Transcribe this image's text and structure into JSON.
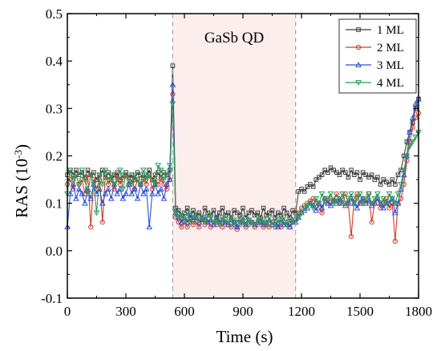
{
  "chart_data": {
    "type": "line",
    "title": "",
    "xlabel": "Time (s)",
    "ylabel_main": "RAS (10",
    "ylabel_sup": "-3",
    "ylabel_tail": ")",
    "xlim": [
      0,
      1800
    ],
    "ylim": [
      -0.1,
      0.5
    ],
    "xticks": [
      0,
      300,
      600,
      900,
      1200,
      1500,
      1800
    ],
    "xtick_labels": [
      "0",
      "300",
      "600",
      "900",
      "1200",
      "1500",
      "1800"
    ],
    "yticks": [
      -0.1,
      0.0,
      0.1,
      0.2,
      0.3,
      0.4,
      0.5
    ],
    "ytick_labels": [
      "-0.1",
      "0.0",
      "0.1",
      "0.2",
      "0.3",
      "0.4",
      "0.5"
    ],
    "grid": false,
    "legend_position": "top-right",
    "annotation": {
      "text": "GaSb QD",
      "region_x": [
        540,
        1170
      ]
    },
    "series": [
      {
        "name": "1 ML",
        "color": "#3a3a3a",
        "marker": "square",
        "x": [
          0,
          15,
          30,
          45,
          60,
          75,
          90,
          105,
          120,
          135,
          150,
          165,
          180,
          195,
          210,
          225,
          240,
          255,
          270,
          285,
          300,
          315,
          330,
          345,
          360,
          375,
          390,
          405,
          420,
          435,
          450,
          465,
          480,
          495,
          510,
          525,
          540,
          555,
          570,
          585,
          600,
          615,
          630,
          645,
          660,
          675,
          690,
          705,
          720,
          735,
          750,
          765,
          780,
          795,
          810,
          825,
          840,
          855,
          870,
          885,
          900,
          915,
          930,
          945,
          960,
          975,
          990,
          1005,
          1020,
          1035,
          1050,
          1065,
          1080,
          1095,
          1110,
          1125,
          1140,
          1155,
          1170,
          1185,
          1200,
          1215,
          1230,
          1245,
          1260,
          1275,
          1290,
          1305,
          1320,
          1335,
          1350,
          1365,
          1380,
          1395,
          1410,
          1425,
          1440,
          1455,
          1470,
          1485,
          1500,
          1515,
          1530,
          1545,
          1560,
          1575,
          1590,
          1605,
          1620,
          1635,
          1650,
          1665,
          1680,
          1695,
          1710,
          1725,
          1740,
          1755,
          1770,
          1785,
          1800
        ],
        "y": [
          0.16,
          0.17,
          0.16,
          0.17,
          0.16,
          0.165,
          0.155,
          0.17,
          0.16,
          0.165,
          0.15,
          0.16,
          0.17,
          0.155,
          0.165,
          0.15,
          0.16,
          0.165,
          0.15,
          0.16,
          0.165,
          0.155,
          0.16,
          0.15,
          0.165,
          0.16,
          0.155,
          0.16,
          0.17,
          0.15,
          0.16,
          0.165,
          0.155,
          0.165,
          0.16,
          0.17,
          0.39,
          0.09,
          0.085,
          0.075,
          0.08,
          0.09,
          0.07,
          0.085,
          0.075,
          0.08,
          0.07,
          0.09,
          0.08,
          0.075,
          0.085,
          0.07,
          0.08,
          0.09,
          0.075,
          0.08,
          0.07,
          0.085,
          0.08,
          0.075,
          0.09,
          0.07,
          0.08,
          0.085,
          0.075,
          0.08,
          0.07,
          0.09,
          0.075,
          0.08,
          0.085,
          0.07,
          0.08,
          0.075,
          0.09,
          0.08,
          0.07,
          0.085,
          0.08,
          0.125,
          0.13,
          0.125,
          0.135,
          0.14,
          0.135,
          0.15,
          0.155,
          0.16,
          0.17,
          0.165,
          0.175,
          0.17,
          0.165,
          0.16,
          0.17,
          0.165,
          0.155,
          0.17,
          0.16,
          0.165,
          0.15,
          0.165,
          0.16,
          0.155,
          0.16,
          0.15,
          0.155,
          0.14,
          0.15,
          0.145,
          0.14,
          0.15,
          0.14,
          0.16,
          0.17,
          0.2,
          0.23,
          0.25,
          0.27,
          0.3,
          0.32
        ]
      },
      {
        "name": "2 ML",
        "color": "#d0392b",
        "marker": "circle",
        "x": [
          0,
          15,
          30,
          45,
          60,
          75,
          90,
          105,
          120,
          135,
          150,
          165,
          180,
          195,
          210,
          225,
          240,
          255,
          270,
          285,
          300,
          315,
          330,
          345,
          360,
          375,
          390,
          405,
          420,
          435,
          450,
          465,
          480,
          495,
          510,
          525,
          540,
          555,
          570,
          585,
          600,
          615,
          630,
          645,
          660,
          675,
          690,
          705,
          720,
          735,
          750,
          765,
          780,
          795,
          810,
          825,
          840,
          855,
          870,
          885,
          900,
          915,
          930,
          945,
          960,
          975,
          990,
          1005,
          1020,
          1035,
          1050,
          1065,
          1080,
          1095,
          1110,
          1125,
          1140,
          1155,
          1170,
          1185,
          1200,
          1215,
          1230,
          1245,
          1260,
          1275,
          1290,
          1305,
          1320,
          1335,
          1350,
          1365,
          1380,
          1395,
          1410,
          1425,
          1440,
          1455,
          1470,
          1485,
          1500,
          1515,
          1530,
          1545,
          1560,
          1575,
          1590,
          1605,
          1620,
          1635,
          1650,
          1665,
          1680,
          1695,
          1710,
          1725,
          1740,
          1755,
          1770,
          1785,
          1800
        ],
        "y": [
          0.14,
          0.15,
          0.13,
          0.16,
          0.14,
          0.15,
          0.12,
          0.16,
          0.05,
          0.15,
          0.13,
          0.15,
          0.06,
          0.16,
          0.14,
          0.15,
          0.13,
          0.16,
          0.14,
          0.15,
          0.16,
          0.14,
          0.15,
          0.13,
          0.15,
          0.14,
          0.15,
          0.14,
          0.16,
          0.13,
          0.15,
          0.14,
          0.15,
          0.14,
          0.13,
          0.15,
          0.33,
          0.07,
          0.06,
          0.05,
          0.06,
          0.05,
          0.065,
          0.055,
          0.06,
          0.05,
          0.065,
          0.055,
          0.06,
          0.05,
          0.06,
          0.055,
          0.065,
          0.05,
          0.06,
          0.055,
          0.05,
          0.06,
          0.045,
          0.055,
          0.06,
          0.05,
          0.055,
          0.06,
          0.05,
          0.055,
          0.06,
          0.05,
          0.055,
          0.05,
          0.06,
          0.05,
          0.055,
          0.05,
          0.06,
          0.055,
          0.05,
          0.06,
          0.065,
          0.08,
          0.09,
          0.095,
          0.1,
          0.105,
          0.11,
          0.1,
          0.09,
          0.08,
          0.11,
          0.1,
          0.11,
          0.105,
          0.12,
          0.1,
          0.11,
          0.12,
          0.1,
          0.03,
          0.11,
          0.12,
          0.1,
          0.11,
          0.1,
          0.12,
          0.06,
          0.1,
          0.11,
          0.09,
          0.1,
          0.11,
          0.09,
          0.1,
          0.02,
          0.1,
          0.11,
          0.14,
          0.19,
          0.23,
          0.26,
          0.28,
          0.29
        ]
      },
      {
        "name": "3 ML",
        "color": "#2e4fd6",
        "marker": "triangle-up",
        "x": [
          0,
          15,
          30,
          45,
          60,
          75,
          90,
          105,
          120,
          135,
          150,
          165,
          180,
          195,
          210,
          225,
          240,
          255,
          270,
          285,
          300,
          315,
          330,
          345,
          360,
          375,
          390,
          405,
          420,
          435,
          450,
          465,
          480,
          495,
          510,
          525,
          540,
          555,
          570,
          585,
          600,
          615,
          630,
          645,
          660,
          675,
          690,
          705,
          720,
          735,
          750,
          765,
          780,
          795,
          810,
          825,
          840,
          855,
          870,
          885,
          900,
          915,
          930,
          945,
          960,
          975,
          990,
          1005,
          1020,
          1035,
          1050,
          1065,
          1080,
          1095,
          1110,
          1125,
          1140,
          1155,
          1170,
          1185,
          1200,
          1215,
          1230,
          1245,
          1260,
          1275,
          1290,
          1305,
          1320,
          1335,
          1350,
          1365,
          1380,
          1395,
          1410,
          1425,
          1440,
          1455,
          1470,
          1485,
          1500,
          1515,
          1530,
          1545,
          1560,
          1575,
          1590,
          1605,
          1620,
          1635,
          1650,
          1665,
          1680,
          1695,
          1710,
          1725,
          1740,
          1755,
          1770,
          1785,
          1800
        ],
        "y": [
          0.05,
          0.12,
          0.14,
          0.11,
          0.13,
          0.12,
          0.1,
          0.13,
          0.11,
          0.14,
          0.12,
          0.13,
          0.1,
          0.12,
          0.13,
          0.11,
          0.14,
          0.12,
          0.13,
          0.11,
          0.12,
          0.14,
          0.12,
          0.13,
          0.11,
          0.14,
          0.12,
          0.13,
          0.05,
          0.12,
          0.14,
          0.12,
          0.13,
          0.11,
          0.14,
          0.15,
          0.35,
          0.08,
          0.07,
          0.06,
          0.07,
          0.06,
          0.075,
          0.065,
          0.07,
          0.06,
          0.065,
          0.07,
          0.06,
          0.065,
          0.055,
          0.07,
          0.06,
          0.065,
          0.06,
          0.055,
          0.065,
          0.06,
          0.05,
          0.065,
          0.06,
          0.055,
          0.065,
          0.06,
          0.055,
          0.06,
          0.065,
          0.055,
          0.06,
          0.065,
          0.055,
          0.06,
          0.05,
          0.065,
          0.055,
          0.06,
          0.05,
          0.065,
          0.06,
          0.07,
          0.08,
          0.085,
          0.09,
          0.1,
          0.095,
          0.085,
          0.1,
          0.09,
          0.11,
          0.1,
          0.095,
          0.105,
          0.1,
          0.11,
          0.1,
          0.095,
          0.1,
          0.11,
          0.1,
          0.09,
          0.1,
          0.11,
          0.1,
          0.105,
          0.095,
          0.1,
          0.11,
          0.1,
          0.09,
          0.1,
          0.1,
          0.11,
          0.08,
          0.1,
          0.13,
          0.16,
          0.2,
          0.25,
          0.28,
          0.31,
          0.32
        ]
      },
      {
        "name": "4 ML",
        "color": "#2a9a55",
        "marker": "triangle-down",
        "x": [
          0,
          15,
          30,
          45,
          60,
          75,
          90,
          105,
          120,
          135,
          150,
          165,
          180,
          195,
          210,
          225,
          240,
          255,
          270,
          285,
          300,
          315,
          330,
          345,
          360,
          375,
          390,
          405,
          420,
          435,
          450,
          465,
          480,
          495,
          510,
          525,
          540,
          555,
          570,
          585,
          600,
          615,
          630,
          645,
          660,
          675,
          690,
          705,
          720,
          735,
          750,
          765,
          780,
          795,
          810,
          825,
          840,
          855,
          870,
          885,
          900,
          915,
          930,
          945,
          960,
          975,
          990,
          1005,
          1020,
          1035,
          1050,
          1065,
          1080,
          1095,
          1110,
          1125,
          1140,
          1155,
          1170,
          1185,
          1200,
          1215,
          1230,
          1245,
          1260,
          1275,
          1290,
          1305,
          1320,
          1335,
          1350,
          1365,
          1380,
          1395,
          1410,
          1425,
          1440,
          1455,
          1470,
          1485,
          1500,
          1515,
          1530,
          1545,
          1560,
          1575,
          1590,
          1605,
          1620,
          1635,
          1650,
          1665,
          1680,
          1695,
          1710,
          1725,
          1740,
          1755,
          1770,
          1785,
          1800
        ],
        "y": [
          0.12,
          0.17,
          0.15,
          0.16,
          0.14,
          0.17,
          0.15,
          0.12,
          0.16,
          0.14,
          0.08,
          0.16,
          0.14,
          0.17,
          0.15,
          0.16,
          0.14,
          0.15,
          0.17,
          0.13,
          0.16,
          0.15,
          0.14,
          0.16,
          0.15,
          0.14,
          0.17,
          0.15,
          0.16,
          0.15,
          0.14,
          0.18,
          0.17,
          0.15,
          0.16,
          0.18,
          0.31,
          0.08,
          0.07,
          0.075,
          0.065,
          0.08,
          0.06,
          0.075,
          0.07,
          0.065,
          0.07,
          0.06,
          0.075,
          0.07,
          0.06,
          0.065,
          0.055,
          0.07,
          0.065,
          0.06,
          0.07,
          0.055,
          0.065,
          0.06,
          0.07,
          0.055,
          0.065,
          0.06,
          0.055,
          0.07,
          0.06,
          0.065,
          0.055,
          0.07,
          0.06,
          0.055,
          0.065,
          0.06,
          0.07,
          0.055,
          0.065,
          0.06,
          0.075,
          0.07,
          0.08,
          0.09,
          0.095,
          0.1,
          0.09,
          0.11,
          0.1,
          0.12,
          0.105,
          0.11,
          0.12,
          0.1,
          0.11,
          0.1,
          0.12,
          0.1,
          0.11,
          0.12,
          0.1,
          0.11,
          0.12,
          0.1,
          0.11,
          0.12,
          0.1,
          0.11,
          0.12,
          0.1,
          0.11,
          0.1,
          0.12,
          0.11,
          0.1,
          0.12,
          0.14,
          0.17,
          0.2,
          0.22,
          0.23,
          0.24,
          0.25
        ]
      }
    ]
  }
}
